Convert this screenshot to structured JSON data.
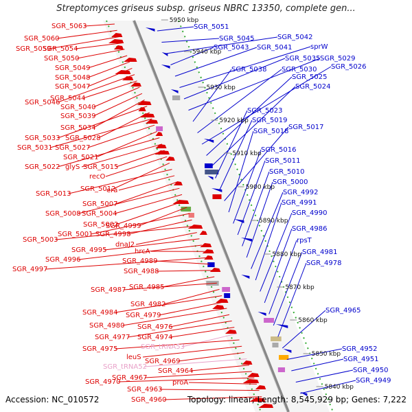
{
  "title": "Streptomyces griseus subsp. griseus NBRC 13350, complete gen...",
  "footer": {
    "accession": "Accession: NC_010572",
    "stats": "Topology: linear; Length: 8,545,929 bp; Genes: 7,222"
  },
  "colors": {
    "forward": "#dd0000",
    "reverse": "#0000cc",
    "rna": "#e8a0c8",
    "axis": "#909090",
    "tick": "#33aa33"
  },
  "scale_labels": [
    "5950 kbp",
    "5940 kbp",
    "5930 kbp",
    "5920 kbp",
    "5910 kbp",
    "5900 kbp",
    "5890 kbp",
    "5880 kbp",
    "5870 kbp",
    "5860 kbp",
    "5850 kbp",
    "5840 kbp"
  ],
  "left_genes": [
    {
      "name": "SGR_5063",
      "color": "red"
    },
    {
      "name": "SGR_5060",
      "color": "red"
    },
    {
      "name": "SGR_5059",
      "color": "red"
    },
    {
      "name": "SGR_5054",
      "color": "red"
    },
    {
      "name": "SGR_5050",
      "color": "red"
    },
    {
      "name": "SGR_5049",
      "color": "red"
    },
    {
      "name": "SGR_5048",
      "color": "red"
    },
    {
      "name": "SGR_5047",
      "color": "red"
    },
    {
      "name": "SGR_5046",
      "color": "red"
    },
    {
      "name": "SGR_5044",
      "color": "red"
    },
    {
      "name": "SGR_5040",
      "color": "red"
    },
    {
      "name": "SGR_5039",
      "color": "red"
    },
    {
      "name": "SGR_5034",
      "color": "red"
    },
    {
      "name": "SGR_5033",
      "color": "red"
    },
    {
      "name": "SGR_5028",
      "color": "red"
    },
    {
      "name": "SGR_5031",
      "color": "red"
    },
    {
      "name": "SGR_5027",
      "color": "red"
    },
    {
      "name": "SGR_5021",
      "color": "red"
    },
    {
      "name": "SGR_5022",
      "color": "red"
    },
    {
      "name": "glyS",
      "color": "red"
    },
    {
      "name": "SGR_5015",
      "color": "red"
    },
    {
      "name": "recO",
      "color": "red"
    },
    {
      "name": "SGR_5012",
      "color": "red"
    },
    {
      "name": "SGR_5013",
      "color": "red"
    },
    {
      "name": "era",
      "color": "red"
    },
    {
      "name": "SGR_5007",
      "color": "red"
    },
    {
      "name": "SGR_5008",
      "color": "red"
    },
    {
      "name": "SGR_5004",
      "color": "red"
    },
    {
      "name": "SGR_5002",
      "color": "red"
    },
    {
      "name": "SGR_4999",
      "color": "red"
    },
    {
      "name": "SGR_5001",
      "color": "red"
    },
    {
      "name": "SGR_4998",
      "color": "red"
    },
    {
      "name": "SGR_5003",
      "color": "red"
    },
    {
      "name": "dnaJ2",
      "color": "red"
    },
    {
      "name": "SGR_4995",
      "color": "red"
    },
    {
      "name": "SGR_4996",
      "color": "red"
    },
    {
      "name": "hrcA",
      "color": "red"
    },
    {
      "name": "SGR_4997",
      "color": "red"
    },
    {
      "name": "SGR_4989",
      "color": "red"
    },
    {
      "name": "SGR_4988",
      "color": "red"
    },
    {
      "name": "SGR_4985",
      "color": "red"
    },
    {
      "name": "SGR_4987",
      "color": "red"
    },
    {
      "name": "SGR_4982",
      "color": "red"
    },
    {
      "name": "SGR_4984",
      "color": "red"
    },
    {
      "name": "SGR_4979",
      "color": "red"
    },
    {
      "name": "SGR_4980",
      "color": "red"
    },
    {
      "name": "SGR_4976",
      "color": "red"
    },
    {
      "name": "SGR_4977",
      "color": "red"
    },
    {
      "name": "SGR_4974",
      "color": "red"
    },
    {
      "name": "SGR_tRNA53",
      "color": "pink"
    },
    {
      "name": "SGR_4975",
      "color": "red"
    },
    {
      "name": "leuS",
      "color": "red"
    },
    {
      "name": "SGR_4969",
      "color": "red"
    },
    {
      "name": "SGR_tRNA52",
      "color": "pink"
    },
    {
      "name": "SGR_4964",
      "color": "red"
    },
    {
      "name": "SGR_4967",
      "color": "red"
    },
    {
      "name": "SGR_4970",
      "color": "red"
    },
    {
      "name": "proA",
      "color": "red"
    },
    {
      "name": "SGR_4963",
      "color": "red"
    },
    {
      "name": "SGR_4960",
      "color": "red"
    }
  ],
  "right_genes": [
    "SGR_5051",
    "SGR_5045",
    "SGR_5042",
    "SGR_5043",
    "SGR_5041",
    "sprW",
    "SGR_5035",
    "SGR_5029",
    "SGR_5038",
    "SGR_5030",
    "SGR_5026",
    "SGR_5025",
    "SGR_5024",
    "SGR_5023",
    "SGR_5019",
    "SGR_5017",
    "SGR_5018",
    "SGR_5016",
    "SGR_5011",
    "SGR_5010",
    "SGR_5000",
    "SGR_4992",
    "SGR_4991",
    "SGR_4990",
    "SGR_4986",
    "rpsT",
    "SGR_4981",
    "SGR_4978",
    "SGR_4965",
    "SGR_4952",
    "SGR_4951",
    "SGR_4950",
    "SGR_4949"
  ]
}
